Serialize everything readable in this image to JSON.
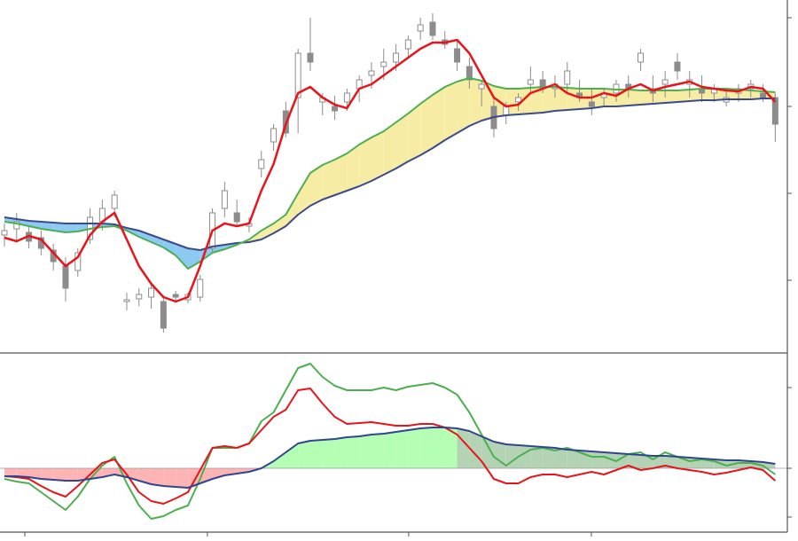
{
  "chart_data": [
    {
      "type": "candlestick",
      "xlim": [
        -0.36,
        63.99
      ],
      "xticks": [
        1.67,
        16.59,
        33.04,
        47.97
      ],
      "ylim": [
        3,
        400
      ],
      "yticks": [
        84,
        182,
        280,
        380
      ],
      "candles": {
        "up_color": "#ffffff",
        "down_color": "#8c8c8c",
        "edge_color": "#8c8c8c",
        "open": [
          135,
          142,
          138,
          132,
          118,
          100,
          95,
          130,
          150,
          165,
          60,
          63,
          65,
          60,
          68,
          62,
          65,
          120,
          165,
          160,
          145,
          210,
          240,
          275,
          290,
          340,
          285,
          280,
          285,
          300,
          315,
          325,
          330,
          345,
          365,
          375,
          355,
          345,
          325,
          300,
          280,
          270,
          285,
          305,
          310,
          300,
          305,
          295,
          285,
          290,
          295,
          305,
          330,
          300,
          305,
          330,
          305,
          300,
          295,
          285,
          295,
          300,
          295,
          290
        ],
        "high": [
          148,
          160,
          145,
          140,
          125,
          110,
          120,
          165,
          175,
          185,
          70,
          75,
          80,
          65,
          72,
          70,
          90,
          165,
          195,
          175,
          155,
          230,
          260,
          285,
          345,
          380,
          295,
          292,
          300,
          315,
          330,
          345,
          350,
          360,
          380,
          385,
          365,
          355,
          335,
          310,
          290,
          285,
          295,
          325,
          320,
          315,
          330,
          310,
          300,
          300,
          310,
          315,
          345,
          315,
          320,
          340,
          320,
          315,
          305,
          300,
          305,
          310,
          305,
          295
        ],
        "low": [
          122,
          128,
          120,
          112,
          95,
          60,
          88,
          125,
          140,
          155,
          50,
          55,
          52,
          25,
          60,
          58,
          60,
          115,
          155,
          145,
          138,
          200,
          230,
          245,
          250,
          320,
          270,
          265,
          275,
          285,
          300,
          310,
          320,
          335,
          355,
          355,
          345,
          320,
          300,
          280,
          245,
          260,
          275,
          295,
          295,
          290,
          295,
          285,
          270,
          280,
          285,
          290,
          320,
          285,
          290,
          310,
          290,
          285,
          285,
          280,
          285,
          290,
          285,
          240
        ],
        "close": [
          140,
          150,
          128,
          120,
          105,
          75,
          115,
          155,
          165,
          180,
          62,
          68,
          75,
          30,
          65,
          68,
          85,
          160,
          185,
          150,
          148,
          220,
          255,
          250,
          340,
          330,
          290,
          275,
          295,
          310,
          320,
          330,
          340,
          355,
          372,
          360,
          350,
          330,
          310,
          305,
          255,
          280,
          290,
          310,
          300,
          305,
          320,
          290,
          280,
          295,
          305,
          300,
          340,
          295,
          310,
          320,
          310,
          295,
          300,
          290,
          300,
          305,
          290,
          260
        ]
      },
      "series": [
        {
          "color": "#3a4a8c",
          "values": [
            155,
            153,
            151,
            150,
            149,
            148,
            148,
            148,
            148,
            147,
            143,
            140,
            135,
            130,
            125,
            120,
            118,
            122,
            124,
            126,
            127,
            130,
            137,
            145,
            158,
            168,
            175,
            180,
            185,
            190,
            196,
            203,
            210,
            218,
            225,
            233,
            242,
            250,
            258,
            264,
            268,
            270,
            271,
            272,
            273,
            275,
            276,
            277,
            278,
            280,
            280,
            281,
            282,
            283,
            284,
            285,
            286,
            287,
            287,
            288,
            288,
            288,
            289,
            289
          ]
        },
        {
          "color": "#4caf50",
          "values": [
            150,
            148,
            145,
            142,
            140,
            138,
            139,
            142,
            144,
            145,
            140,
            133,
            127,
            121,
            112,
            97,
            105,
            115,
            119,
            124,
            130,
            140,
            148,
            158,
            182,
            205,
            214,
            220,
            227,
            237,
            245,
            252,
            262,
            272,
            283,
            293,
            302,
            308,
            312,
            309,
            303,
            300,
            300,
            301,
            302,
            302,
            301,
            300,
            300,
            300,
            299,
            299,
            298,
            298,
            298,
            298,
            299,
            300,
            300,
            300,
            299,
            298,
            297,
            296
          ]
        },
        {
          "color": "#e8141a",
          "values": [
            132,
            128,
            134,
            130,
            115,
            100,
            110,
            135,
            150,
            160,
            130,
            100,
            80,
            65,
            60,
            65,
            100,
            140,
            148,
            145,
            148,
            185,
            215,
            260,
            295,
            302,
            290,
            282,
            278,
            300,
            305,
            315,
            325,
            335,
            345,
            352,
            352,
            355,
            340,
            315,
            290,
            280,
            282,
            295,
            300,
            305,
            295,
            290,
            290,
            295,
            292,
            300,
            305,
            298,
            302,
            305,
            308,
            302,
            300,
            298,
            297,
            302,
            300,
            285
          ]
        }
      ],
      "band_colors": {
        "above": "#f7eca4",
        "below": "#8ccaf2"
      }
    },
    {
      "type": "line",
      "xlim": [
        -0.36,
        63.99
      ],
      "xticks": [
        1.67,
        16.59,
        33.04,
        47.97
      ],
      "ylim": [
        -72,
        129
      ],
      "yticks": [
        -55,
        0,
        91
      ],
      "series": [
        {
          "color": "#4caf50",
          "values": [
            -12,
            -15,
            -17,
            -27,
            -37,
            -47,
            -32,
            -12,
            3,
            13,
            -17,
            -42,
            -57,
            -54,
            -47,
            -42,
            -12,
            23,
            23,
            23,
            28,
            53,
            63,
            88,
            113,
            118,
            103,
            93,
            88,
            88,
            88,
            91,
            88,
            92,
            94,
            96,
            91,
            83,
            63,
            38,
            13,
            3,
            13,
            21,
            23,
            20,
            23,
            18,
            13,
            13,
            8,
            16,
            18,
            10,
            18,
            13,
            8,
            10,
            8,
            3,
            6,
            6,
            3,
            -7
          ]
        },
        {
          "color": "#e8141a",
          "values": [
            -9,
            -10,
            -12,
            -20,
            -27,
            -32,
            -20,
            -7,
            6,
            10,
            -7,
            -27,
            -37,
            -40,
            -34,
            -27,
            -2,
            23,
            25,
            23,
            28,
            43,
            58,
            66,
            88,
            90,
            73,
            58,
            50,
            51,
            52,
            50,
            48,
            48,
            50,
            50,
            46,
            38,
            23,
            8,
            -12,
            -17,
            -17,
            -10,
            -7,
            -7,
            -10,
            -7,
            -4,
            -7,
            -2,
            3,
            -2,
            0,
            3,
            0,
            -2,
            -4,
            -7,
            -5,
            -2,
            1,
            -2,
            -14
          ]
        },
        {
          "color": "#2f4590",
          "values": [
            -9,
            -9,
            -10,
            -12,
            -13,
            -14,
            -14,
            -12,
            -10,
            -7,
            -10,
            -14,
            -18,
            -20,
            -21,
            -22,
            -17,
            -12,
            -8,
            -6,
            -4,
            0,
            8,
            18,
            28,
            31,
            32,
            33,
            35,
            36,
            38,
            39,
            41,
            43,
            45,
            46,
            46,
            45,
            42,
            36,
            30,
            27,
            26,
            25,
            24,
            23,
            21,
            20,
            19,
            18,
            17,
            16,
            15,
            14,
            14,
            13,
            12,
            11,
            10,
            9,
            9,
            8,
            7,
            5
          ]
        }
      ],
      "fill_colors": {
        "positive": "#b4ffb4",
        "negative": "#ffb4b4",
        "faded": "#b4d2b4"
      }
    }
  ]
}
